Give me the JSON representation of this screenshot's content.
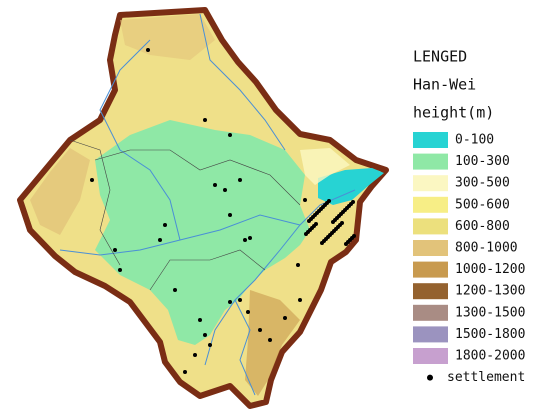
{
  "legend": {
    "title": "LENGED",
    "region": "Han-Wei",
    "unit": "height(m)",
    "items": [
      {
        "label": "0-100",
        "color": "#27d3d3"
      },
      {
        "label": "100-300",
        "color": "#8fe8a6"
      },
      {
        "label": "300-500",
        "color": "#fbf7c2"
      },
      {
        "label": "500-600",
        "color": "#f7ee86"
      },
      {
        "label": "600-800",
        "color": "#ece07d"
      },
      {
        "label": "800-1000",
        "color": "#e2c37a"
      },
      {
        "label": "1000-1200",
        "color": "#c89a4f"
      },
      {
        "label": "1200-1300",
        "color": "#94622f"
      },
      {
        "label": "1300-1500",
        "color": "#a98c84"
      },
      {
        "label": "1500-1800",
        "color": "#9b93bf"
      },
      {
        "label": "1800-2000",
        "color": "#c7a0cf"
      }
    ],
    "settlement": "settlement"
  }
}
